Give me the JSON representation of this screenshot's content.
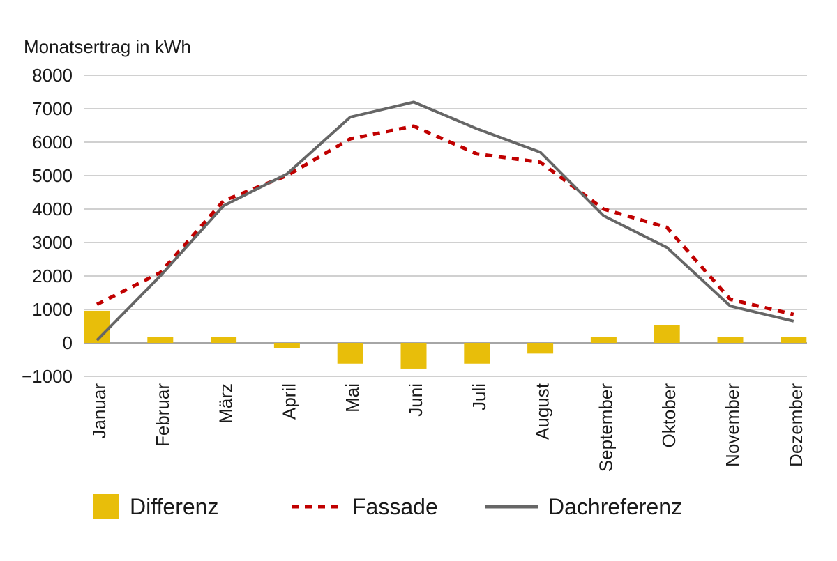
{
  "chart_data": {
    "type": "bar+line",
    "ylabel": "Monatsertrag in kWh",
    "ylim": [
      -1000,
      8000
    ],
    "yticks": [
      -1000,
      0,
      1000,
      2000,
      3000,
      4000,
      5000,
      6000,
      7000,
      8000
    ],
    "ytick_labels": [
      "−1000",
      "0",
      "1000",
      "2000",
      "3000",
      "4000",
      "5000",
      "6000",
      "7000",
      "8000"
    ],
    "grid": true,
    "legend_placement": "bottom",
    "categories": [
      "Januar",
      "Februar",
      "März",
      "April",
      "Mai",
      "Juni",
      "Juli",
      "August",
      "September",
      "Oktober",
      "November",
      "Dezember"
    ],
    "series": [
      {
        "name": "Differenz",
        "type": "bar",
        "color": "#E8BE0A",
        "values": [
          960,
          180,
          180,
          -150,
          -620,
          -770,
          -620,
          -320,
          180,
          540,
          180,
          180
        ]
      },
      {
        "name": "Fassade",
        "type": "line",
        "style": "dashed",
        "color": "#C00000",
        "values": [
          1150,
          2100,
          4250,
          5000,
          6100,
          6480,
          5650,
          5400,
          4000,
          3450,
          1300,
          850
        ]
      },
      {
        "name": "Dachreferenz",
        "type": "line",
        "style": "solid",
        "color": "#666666",
        "values": [
          80,
          2000,
          4100,
          5050,
          6750,
          7200,
          6400,
          5700,
          3800,
          2850,
          1100,
          650
        ]
      }
    ]
  }
}
